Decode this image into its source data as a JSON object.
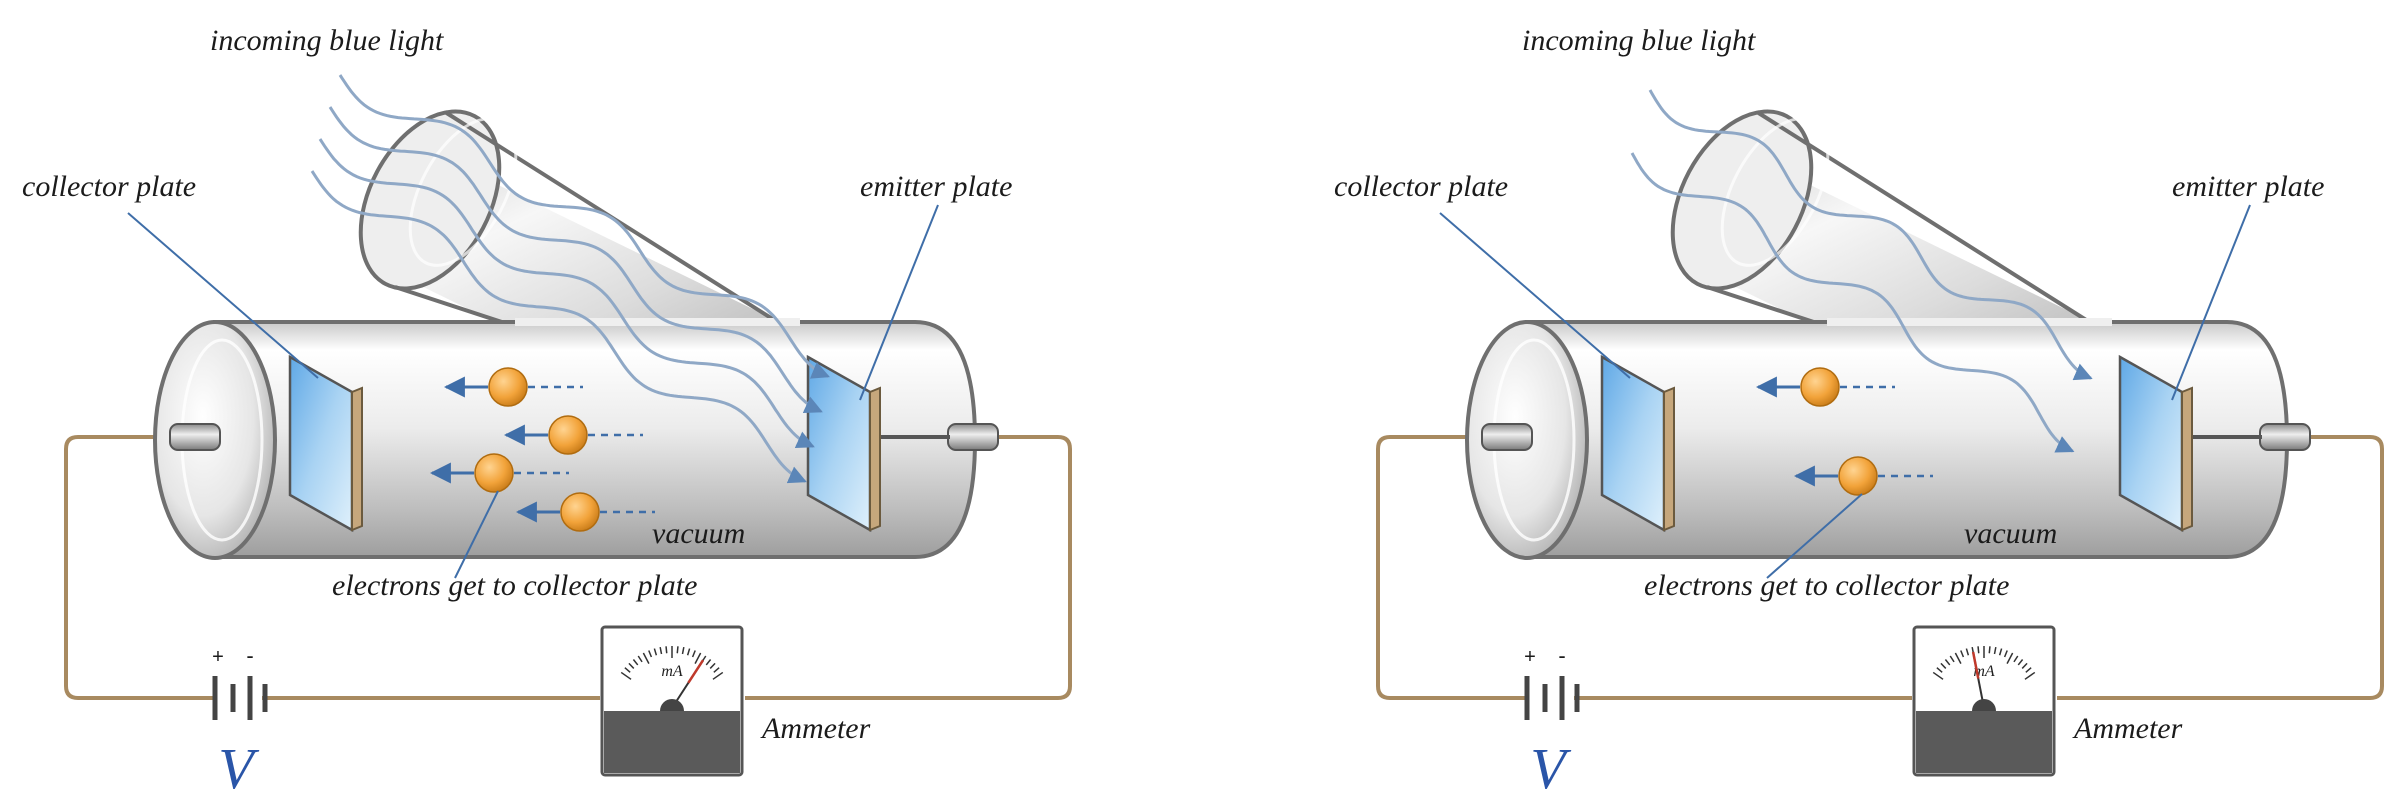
{
  "panels": [
    {
      "id": "left",
      "labels": {
        "incoming_light": "incoming blue light",
        "collector": "collector plate",
        "emitter": "emitter plate",
        "vacuum": "vacuum",
        "electrons": "electrons get to collector plate",
        "ammeter": "Ammeter",
        "voltage": "V",
        "plus": "+",
        "minus": "-",
        "meter_unit": "mA"
      },
      "light_ray_count": 4,
      "electron_count": 4,
      "meter_reading_fraction": 0.8
    },
    {
      "id": "right",
      "labels": {
        "incoming_light": "incoming blue light",
        "collector": "collector plate",
        "emitter": "emitter plate",
        "vacuum": "vacuum",
        "electrons": "electrons get to collector plate",
        "ammeter": "Ammeter",
        "voltage": "V",
        "plus": "+",
        "minus": "-",
        "meter_unit": "mA"
      },
      "light_ray_count": 2,
      "electron_count": 2,
      "meter_reading_fraction": 0.4
    }
  ],
  "colors": {
    "wire": "#a88a60",
    "tube_outline": "#6f6f6f",
    "plate": "#8ec5ef",
    "electron": "#f2a33a",
    "arrow": "#3f6ea8",
    "light_ray": "#8fa8c6",
    "needle": "#c0392b",
    "voltage_label": "#2a55a8"
  }
}
